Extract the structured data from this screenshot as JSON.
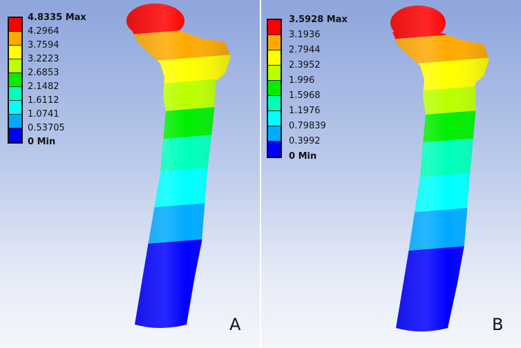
{
  "colors": [
    "#ff0000",
    "#ffaa00",
    "#ffff00",
    "#bbff00",
    "#00ee00",
    "#00ffbb",
    "#00ffff",
    "#00aaff",
    "#0000ff"
  ],
  "panels": [
    {
      "label": "A",
      "legend": [
        "4.8335 Max",
        "4.2964",
        "3.7594",
        "3.2223",
        "2.6853",
        "2.1482",
        "1.6112",
        "1.0741",
        "0.53705",
        "0 Min"
      ]
    },
    {
      "label": "B",
      "legend": [
        "3.5928 Max",
        "3.1936",
        "2.7944",
        "2.3952",
        "1.996",
        "1.5968",
        "1.1976",
        "0.79839",
        "0.3992",
        "0 Min"
      ]
    }
  ]
}
